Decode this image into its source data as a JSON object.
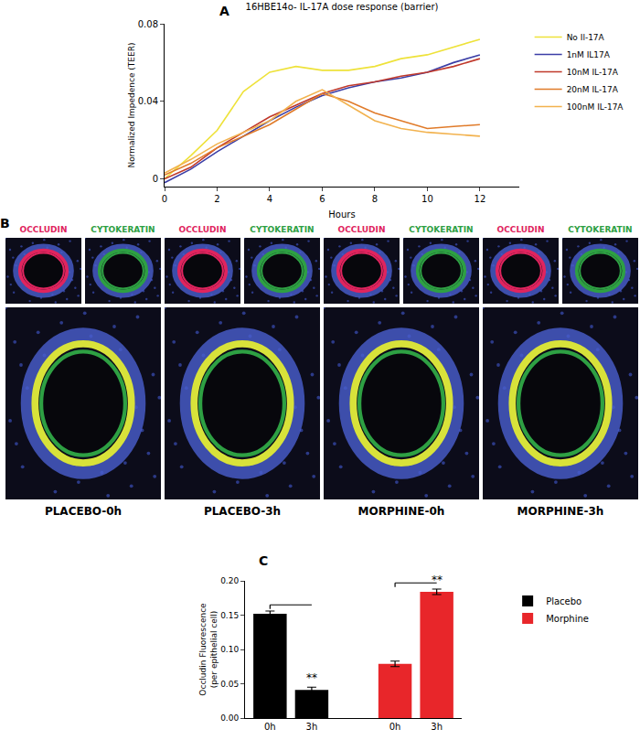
{
  "chart_data": [
    {
      "type": "line",
      "panel_label": "A",
      "title": "16HBE14o- IL-17A dose response (barrier)",
      "xlabel": "Hours",
      "ylabel": "Normalized Impedence (TEER)",
      "x": [
        0,
        1,
        2,
        3,
        4,
        5,
        6,
        7,
        8,
        9,
        10,
        11,
        12
      ],
      "series": [
        {
          "name": "No Il-17A",
          "color": "#eee23a",
          "values": [
            0,
            0.012,
            0.025,
            0.045,
            0.055,
            0.058,
            0.056,
            0.056,
            0.058,
            0.062,
            0.064,
            0.068,
            0.072
          ]
        },
        {
          "name": "1nM IL17A",
          "color": "#3b3ea6",
          "values": [
            -0.002,
            0.005,
            0.014,
            0.022,
            0.03,
            0.037,
            0.043,
            0.047,
            0.05,
            0.052,
            0.055,
            0.06,
            0.064
          ]
        },
        {
          "name": "10nM IL-17A",
          "color": "#c0392b",
          "values": [
            0,
            0.006,
            0.016,
            0.024,
            0.032,
            0.038,
            0.044,
            0.048,
            0.05,
            0.053,
            0.055,
            0.058,
            0.062
          ]
        },
        {
          "name": "20nM IL-17A",
          "color": "#e07b2a",
          "values": [
            0.002,
            0.008,
            0.016,
            0.022,
            0.028,
            0.036,
            0.044,
            0.04,
            0.034,
            0.03,
            0.026,
            0.027,
            0.028
          ]
        },
        {
          "name": "100nM IL-17A",
          "color": "#f2b24e",
          "values": [
            0.003,
            0.01,
            0.018,
            0.024,
            0.03,
            0.04,
            0.046,
            0.038,
            0.03,
            0.026,
            0.024,
            0.023,
            0.022
          ]
        }
      ],
      "xlim": [
        0,
        13.5
      ],
      "xticks": [
        0,
        2,
        4,
        6,
        8,
        10,
        12
      ],
      "ylim": [
        -0.004,
        0.08
      ],
      "yticks": [
        0,
        0.04,
        0.08
      ],
      "grid": false,
      "legend": "right"
    },
    {
      "type": "image",
      "panel_label": "B",
      "stain_labels": [
        "OCCLUDIN",
        "CYTOKERATIN"
      ],
      "colors": [
        "#e0245e",
        "#2ea043"
      ],
      "conditions": [
        "PLACEBO-0h",
        "PLACEBO-3h",
        "MORPHINE-0h",
        "MORPHINE-3h"
      ]
    },
    {
      "type": "bar",
      "panel_label": "C",
      "ylabel": "Occludin Fluorescence\n(per epithelial cell)",
      "categories": [
        "0h",
        "3h",
        null,
        "0h",
        "3h"
      ],
      "series": [
        {
          "name": "Placebo",
          "color": "#000000",
          "values": [
            0.152,
            0.041,
            null,
            null,
            null
          ],
          "errors": [
            0.004,
            0.004,
            null,
            null,
            null
          ]
        },
        {
          "name": "Morphine",
          "color": "#e8262a",
          "values": [
            null,
            null,
            null,
            0.079,
            0.184
          ],
          "errors": [
            null,
            null,
            null,
            0.004,
            0.004
          ]
        }
      ],
      "annotations": [
        {
          "text": "**",
          "x": 1,
          "y": 0.047
        },
        {
          "text": "**",
          "x": 4,
          "y": 0.19
        }
      ],
      "ylim": [
        0,
        0.2
      ],
      "yticks": [
        {
          "value": 0,
          "label": "0.00"
        },
        {
          "value": 0.05,
          "label": "0.05"
        },
        {
          "value": 0.1,
          "label": "0.10"
        },
        {
          "value": 0.15,
          "label": "0.15"
        },
        {
          "value": 0.2,
          "label": "0.20"
        }
      ],
      "grid": false,
      "legend": "right"
    }
  ]
}
